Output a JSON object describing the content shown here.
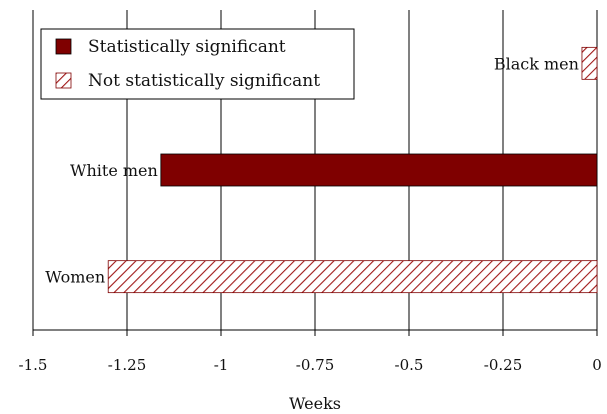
{
  "colors": {
    "significant_fill": "#7f0000",
    "hatch_stroke": "#a01818",
    "hatch_background": "#ffffff",
    "grid": "#000000",
    "background": "#ffffff"
  },
  "chart_data": {
    "type": "bar",
    "orientation": "horizontal",
    "categories": [
      "Black men",
      "White men",
      "Women"
    ],
    "values": [
      -0.04,
      -1.16,
      -1.3
    ],
    "significant": [
      false,
      true,
      false
    ],
    "xlabel": "Weeks",
    "ylabel": "",
    "xlim": [
      -1.5,
      0
    ],
    "xticks": [
      -1.5,
      -1.25,
      -1,
      -0.75,
      -0.5,
      -0.25,
      0
    ],
    "xtick_labels": [
      "-1.5",
      "-1.25",
      "-1",
      "-0.75",
      "-0.5",
      "-0.25",
      "0"
    ],
    "grid": "vertical",
    "legend": {
      "placement": "top-left",
      "entries": [
        {
          "label": "Statistically significant",
          "style": "solid"
        },
        {
          "label": "Not statistically significant",
          "style": "hatched"
        }
      ]
    }
  }
}
